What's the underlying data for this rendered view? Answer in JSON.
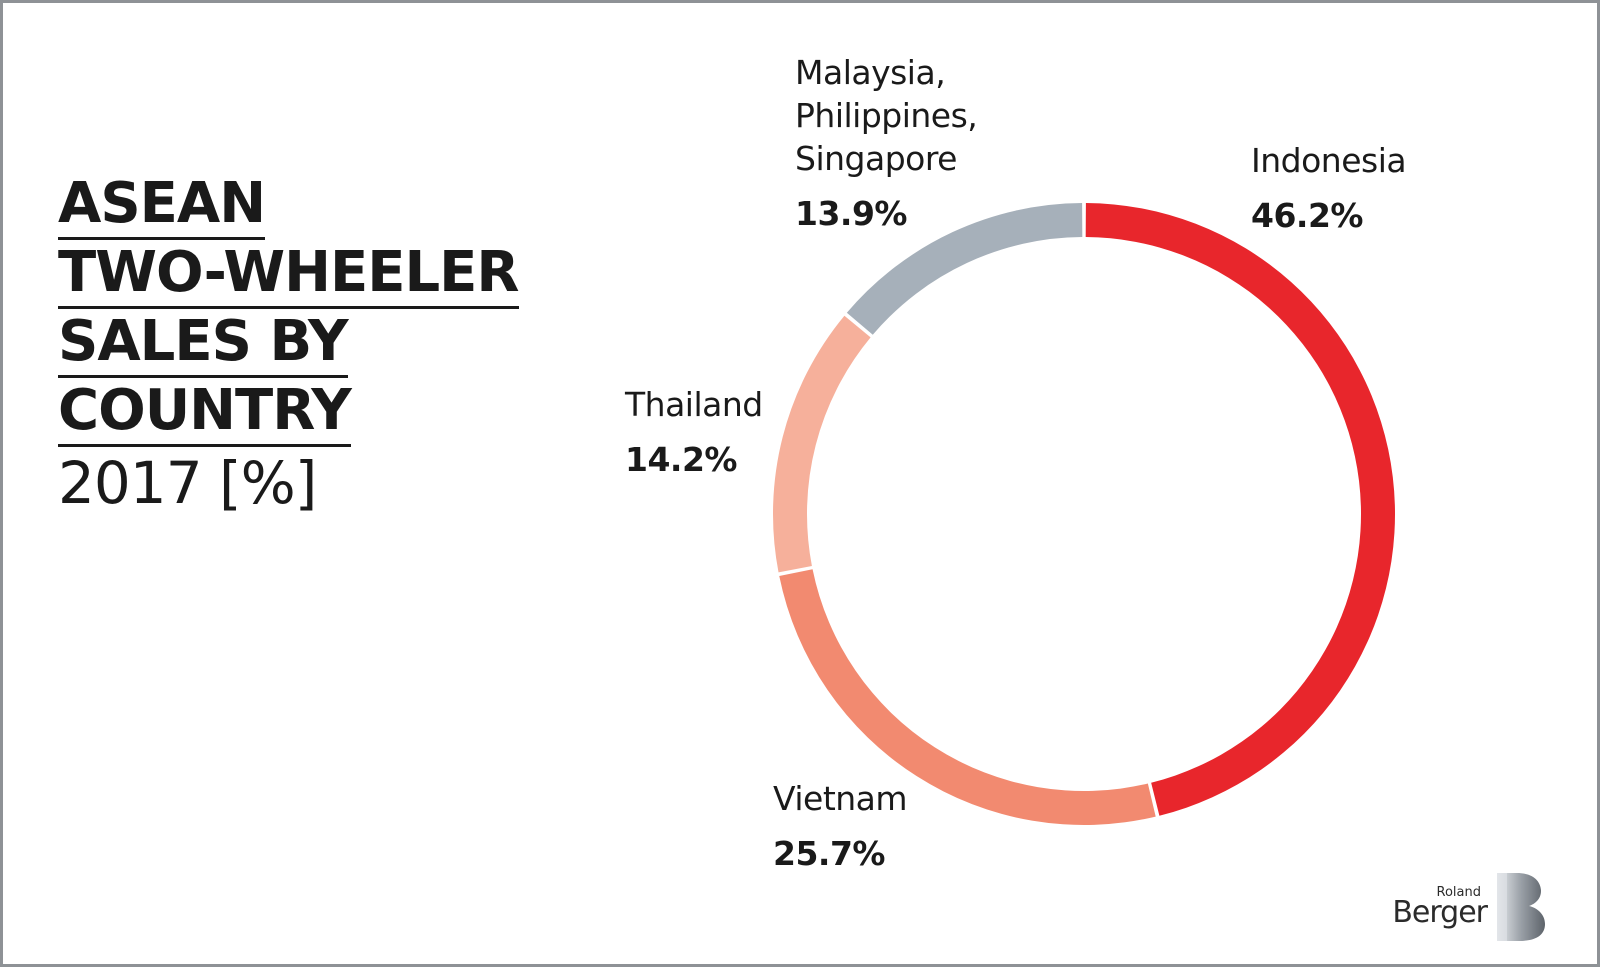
{
  "title": {
    "lines": [
      "ASEAN",
      "TWO-WHEELER",
      "SALES BY",
      "COUNTRY"
    ],
    "subtitle": "2017 [%]"
  },
  "logo": {
    "top": "Roland",
    "bottom": "Berger"
  },
  "chart_data": {
    "type": "pie",
    "style": "donut",
    "title": "ASEAN TWO-WHEELER SALES BY COUNTRY 2017 [%]",
    "unit": "%",
    "slices": [
      {
        "name": "Indonesia",
        "value": 46.2,
        "label": "46.2%",
        "color": "#e8262c"
      },
      {
        "name": "Vietnam",
        "value": 25.7,
        "label": "25.7%",
        "color": "#f28a70"
      },
      {
        "name": "Thailand",
        "value": 14.2,
        "label": "14.2%",
        "color": "#f6b09b"
      },
      {
        "name": "Malaysia, Philippines, Singapore",
        "name_lines": [
          "Malaysia,",
          "Philippines,",
          "Singapore"
        ],
        "value": 13.9,
        "label": "13.9%",
        "color": "#a6b0ba"
      }
    ]
  }
}
